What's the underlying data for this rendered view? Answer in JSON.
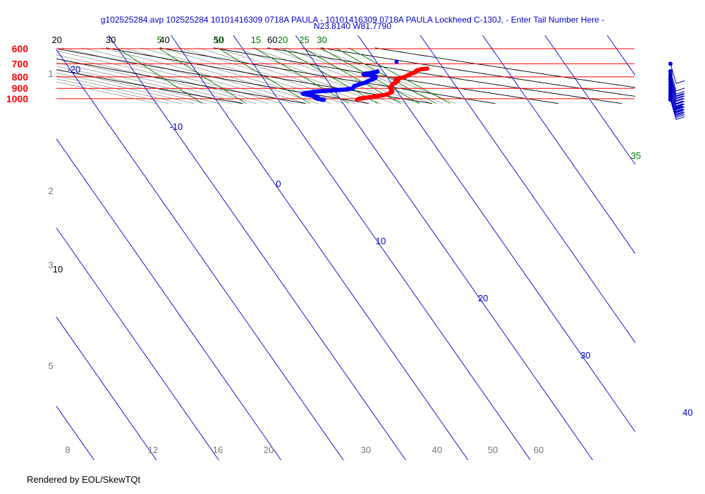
{
  "chart_data": {
    "type": "skewt",
    "title": "g102525284.avp 102525284 10101416309 0718A PAULA - 10101416309 0718A PAULA Lockheed C-130J, - Enter Tail Number Here -",
    "subtitle": "N23.8140 W81.7790",
    "footer": "Rendered by EOL/SkewTQt",
    "pressure_levels_hpa": [
      600,
      700,
      800,
      900,
      1000
    ],
    "pressure_range_hpa": [
      1050,
      600
    ],
    "isotherm_labels_c": [
      -20,
      -10,
      0,
      10,
      20,
      30,
      40
    ],
    "bottom_temp_labels": [
      8,
      12,
      16,
      20,
      30,
      40,
      50,
      60
    ],
    "theta_labels_top": [
      20,
      30,
      40,
      50,
      60
    ],
    "theta_label_left": 10,
    "mixing_ratio_labels_top": [
      5,
      10,
      15,
      20,
      25,
      30
    ],
    "mixing_ratio_label_right": 35,
    "height_km_labels": [
      1,
      2,
      3,
      5
    ],
    "temperature_series": {
      "color": "#ff0000",
      "points": [
        [
          1012,
          22.6
        ],
        [
          1008,
          22.7
        ],
        [
          1000,
          23.1
        ],
        [
          990,
          24.3
        ],
        [
          980,
          25.6
        ],
        [
          960,
          27.8
        ],
        [
          950,
          28.4
        ],
        [
          930,
          29.2
        ],
        [
          910,
          29.2
        ],
        [
          890,
          29.3
        ],
        [
          870,
          29.9
        ],
        [
          860,
          30.1
        ],
        [
          850,
          30.7
        ],
        [
          835,
          31.3
        ],
        [
          820,
          31.1
        ],
        [
          810,
          32.0
        ],
        [
          800,
          32.9
        ],
        [
          780,
          33.9
        ],
        [
          760,
          35.2
        ],
        [
          750,
          35.4
        ],
        [
          740,
          36.3
        ],
        [
          735,
          37.4
        ]
      ]
    },
    "dewpoint_series": {
      "color": "#0000ff",
      "points": [
        [
          1012,
          17.3
        ],
        [
          1008,
          17.0
        ],
        [
          1000,
          16.4
        ],
        [
          990,
          16.1
        ],
        [
          985,
          16.6
        ],
        [
          975,
          16.2
        ],
        [
          960,
          15.2
        ],
        [
          955,
          14.9
        ],
        [
          950,
          14.6
        ],
        [
          940,
          15.6
        ],
        [
          930,
          16.9
        ],
        [
          920,
          19.4
        ],
        [
          910,
          22.0
        ],
        [
          900,
          23.2
        ],
        [
          880,
          23.7
        ],
        [
          860,
          24.9
        ],
        [
          850,
          25.8
        ],
        [
          830,
          26.8
        ],
        [
          810,
          28.0
        ],
        [
          800,
          28.2
        ],
        [
          790,
          27.8
        ],
        [
          780,
          26.5
        ],
        [
          775,
          26.8
        ],
        [
          770,
          27.8
        ],
        [
          765,
          28.3
        ],
        [
          760,
          29.0
        ],
        [
          755,
          29.1
        ]
      ]
    },
    "extra_marker": {
      "pressure_hpa": 700,
      "temp_c": 33.0,
      "color": "#0000ff"
    },
    "wind_barbs": [
      {
        "pressure_hpa": 700,
        "speed_kt": 5
      },
      {
        "pressure_hpa": 755,
        "speed_kt": 10
      },
      {
        "pressure_hpa": 780,
        "speed_kt": 10
      },
      {
        "pressure_hpa": 800,
        "speed_kt": 10
      },
      {
        "pressure_hpa": 820,
        "speed_kt": 15
      },
      {
        "pressure_hpa": 840,
        "speed_kt": 20
      },
      {
        "pressure_hpa": 865,
        "speed_kt": 20
      },
      {
        "pressure_hpa": 890,
        "speed_kt": 25
      },
      {
        "pressure_hpa": 915,
        "speed_kt": 25
      },
      {
        "pressure_hpa": 940,
        "speed_kt": 30
      },
      {
        "pressure_hpa": 965,
        "speed_kt": 30
      },
      {
        "pressure_hpa": 990,
        "speed_kt": 35
      },
      {
        "pressure_hpa": 1010,
        "speed_kt": 40
      }
    ],
    "colors": {
      "isobar": "#ff0000",
      "isotherm": "#0000cc",
      "dry_adiabat": "#000000",
      "moist_adiabat": "#888888",
      "mixing_ratio": "#007700",
      "pressure_label": "#ff0000",
      "title": "#0000cc",
      "height_label": "#777777"
    }
  }
}
